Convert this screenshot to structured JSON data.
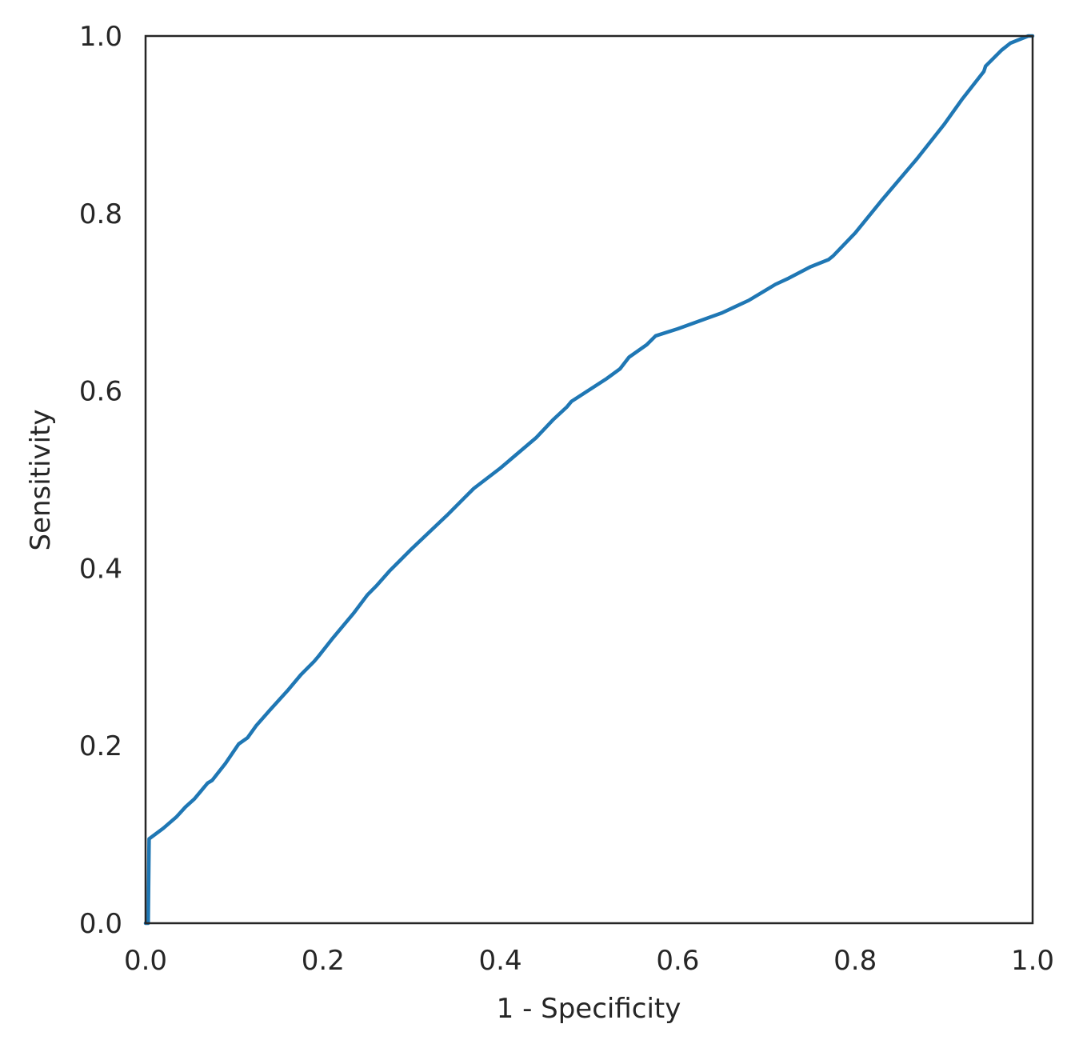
{
  "chart_data": {
    "type": "line",
    "title": "",
    "xlabel": "1 - Specificity",
    "ylabel": "Sensitivity",
    "xlim": [
      0,
      1
    ],
    "ylim": [
      0,
      1
    ],
    "xticks": [
      "0.0",
      "0.2",
      "0.4",
      "0.6",
      "0.8",
      "1.0"
    ],
    "yticks": [
      "0.0",
      "0.2",
      "0.4",
      "0.6",
      "0.8",
      "1.0"
    ],
    "grid": false,
    "line_color": "#1f77b4",
    "series": [
      {
        "x": [
          0.0,
          0.003,
          0.004,
          0.02,
          0.035,
          0.045,
          0.055,
          0.07,
          0.075,
          0.09,
          0.105,
          0.115,
          0.125,
          0.14,
          0.16,
          0.175,
          0.19,
          0.195,
          0.21,
          0.235,
          0.25,
          0.26,
          0.275,
          0.285,
          0.3,
          0.34,
          0.36,
          0.37,
          0.4,
          0.44,
          0.46,
          0.475,
          0.48,
          0.52,
          0.535,
          0.545,
          0.565,
          0.575,
          0.6,
          0.625,
          0.65,
          0.665,
          0.68,
          0.7,
          0.71,
          0.725,
          0.75,
          0.77,
          0.775,
          0.8,
          0.83,
          0.87,
          0.9,
          0.92,
          0.945,
          0.947,
          0.965,
          0.975,
          0.995,
          1.0
        ],
        "y": [
          0.0,
          0.0,
          0.095,
          0.107,
          0.12,
          0.131,
          0.14,
          0.158,
          0.161,
          0.18,
          0.202,
          0.209,
          0.223,
          0.24,
          0.262,
          0.28,
          0.295,
          0.301,
          0.32,
          0.35,
          0.37,
          0.38,
          0.397,
          0.407,
          0.422,
          0.46,
          0.48,
          0.49,
          0.513,
          0.547,
          0.568,
          0.582,
          0.588,
          0.614,
          0.625,
          0.638,
          0.652,
          0.662,
          0.67,
          0.679,
          0.688,
          0.695,
          0.702,
          0.714,
          0.72,
          0.727,
          0.74,
          0.748,
          0.752,
          0.778,
          0.815,
          0.862,
          0.9,
          0.928,
          0.96,
          0.966,
          0.984,
          0.992,
          1.0,
          1.0
        ]
      }
    ]
  }
}
